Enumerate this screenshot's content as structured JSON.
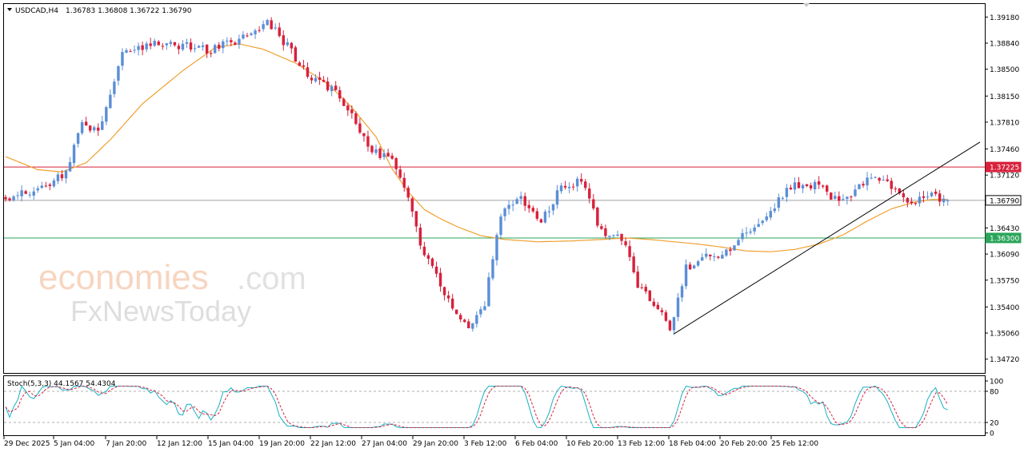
{
  "header": {
    "symbol_label": "USDCAD,H4",
    "ohlc_text": "1.36783 1.36808 1.36722 1.36790"
  },
  "watermark": {
    "brand_top": "economies",
    "brand_top_suffix": ".com",
    "brand_bottom": "FxNewsToday"
  },
  "colors": {
    "bull": "#5b8fd6",
    "bear": "#d8213b",
    "ma": "#f0a030",
    "resistance": "#d8213b",
    "support": "#2aa55a",
    "current": "#a0a0a0",
    "stoch_main": "#19b1c4",
    "stoch_signal": "#d8213b"
  },
  "chart_data": {
    "type": "candlestick",
    "symbol": "USDCAD",
    "timeframe": "H4",
    "ohlc": {
      "open": 1.36783,
      "high": 1.36808,
      "low": 1.36722,
      "close": 1.3679
    },
    "y_axis": {
      "range": [
        1.3454,
        1.3935
      ],
      "ticks": [
        "1.39180",
        "1.38840",
        "1.38500",
        "1.38150",
        "1.37810",
        "1.37460",
        "1.37120",
        "1.36430",
        "1.36090",
        "1.35750",
        "1.35400",
        "1.35060",
        "1.34720"
      ]
    },
    "x_labels": [
      "29 Dec 2025",
      "5 Jan 04:00",
      "7 Jan 20:00",
      "12 Jan 12:00",
      "15 Jan 04:00",
      "19 Jan 20:00",
      "22 Jan 12:00",
      "27 Jan 04:00",
      "29 Jan 20:00",
      "3 Feb 12:00",
      "6 Feb 04:00",
      "10 Feb 20:00",
      "13 Feb 12:00",
      "18 Feb 04:00",
      "20 Feb 20:00",
      "25 Feb 12:00"
    ],
    "price_path": [
      [
        0,
        1.3682
      ],
      [
        8,
        1.369
      ],
      [
        16,
        1.3716
      ],
      [
        20,
        1.3778
      ],
      [
        24,
        1.377
      ],
      [
        30,
        1.3872
      ],
      [
        40,
        1.3885
      ],
      [
        47,
        1.3879
      ],
      [
        52,
        1.3875
      ],
      [
        58,
        1.3887
      ],
      [
        66,
        1.3912
      ],
      [
        71,
        1.388
      ],
      [
        76,
        1.3842
      ],
      [
        82,
        1.3824
      ],
      [
        86,
        1.38
      ],
      [
        92,
        1.3742
      ],
      [
        97,
        1.3735
      ],
      [
        101,
        1.368
      ],
      [
        104,
        1.362
      ],
      [
        110,
        1.356
      ],
      [
        116,
        1.3508
      ],
      [
        120,
        1.3545
      ],
      [
        124,
        1.366
      ],
      [
        129,
        1.368
      ],
      [
        134,
        1.365
      ],
      [
        139,
        1.3698
      ],
      [
        144,
        1.3703
      ],
      [
        149,
        1.3638
      ],
      [
        154,
        1.363
      ],
      [
        158,
        1.357
      ],
      [
        163,
        1.354
      ],
      [
        166,
        1.3505
      ],
      [
        170,
        1.359
      ],
      [
        175,
        1.3605
      ],
      [
        180,
        1.3612
      ],
      [
        186,
        1.3642
      ],
      [
        190,
        1.366
      ],
      [
        196,
        1.3698
      ],
      [
        202,
        1.37
      ],
      [
        207,
        1.368
      ],
      [
        212,
        1.369
      ],
      [
        217,
        1.3714
      ],
      [
        222,
        1.369
      ],
      [
        227,
        1.3675
      ],
      [
        231,
        1.369
      ],
      [
        234,
        1.3679
      ]
    ],
    "moving_average": [
      [
        0,
        1.3736
      ],
      [
        8,
        1.3719
      ],
      [
        14,
        1.3716
      ],
      [
        20,
        1.3728
      ],
      [
        26,
        1.3758
      ],
      [
        34,
        1.3805
      ],
      [
        44,
        1.3848
      ],
      [
        52,
        1.3878
      ],
      [
        58,
        1.3883
      ],
      [
        64,
        1.3876
      ],
      [
        72,
        1.3858
      ],
      [
        80,
        1.3831
      ],
      [
        86,
        1.38
      ],
      [
        92,
        1.3762
      ],
      [
        96,
        1.372
      ],
      [
        100,
        1.369
      ],
      [
        104,
        1.3667
      ],
      [
        108,
        1.3655
      ],
      [
        112,
        1.3645
      ],
      [
        118,
        1.3633
      ],
      [
        124,
        1.3628
      ],
      [
        132,
        1.3625
      ],
      [
        140,
        1.3626
      ],
      [
        148,
        1.3628
      ],
      [
        154,
        1.363
      ],
      [
        160,
        1.3628
      ],
      [
        166,
        1.3625
      ],
      [
        172,
        1.3622
      ],
      [
        178,
        1.3618
      ],
      [
        184,
        1.3613
      ],
      [
        190,
        1.3612
      ],
      [
        196,
        1.3615
      ],
      [
        202,
        1.3622
      ],
      [
        208,
        1.3634
      ],
      [
        214,
        1.3652
      ],
      [
        220,
        1.3668
      ],
      [
        226,
        1.3677
      ],
      [
        230,
        1.368
      ],
      [
        234,
        1.368
      ]
    ],
    "horizontal_lines": [
      {
        "price": 1.37225,
        "label": "1.37225",
        "role": "resistance"
      },
      {
        "price": 1.3679,
        "label": "1.36790",
        "role": "current"
      },
      {
        "price": 1.363,
        "label": "1.36300",
        "role": "support"
      }
    ],
    "trendline": {
      "from": [
        166,
        1.3505
      ],
      "to": [
        242,
        1.3755
      ]
    },
    "stochastic": {
      "label": "Stoch(5,3,3) 44.1567 54.4304",
      "params": "5,3,3",
      "main": 44.1567,
      "signal": 54.4304,
      "range": [
        0,
        100
      ],
      "levels": [
        80,
        20
      ],
      "tick_labels": [
        "100",
        "80",
        "20",
        "0"
      ]
    }
  }
}
